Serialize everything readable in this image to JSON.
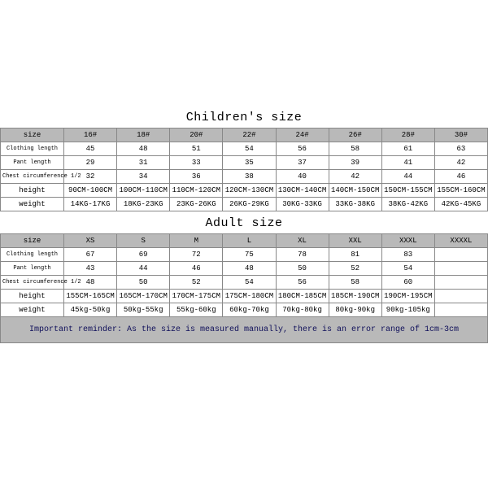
{
  "colors": {
    "header_bg": "#b9b9b9",
    "border": "#888888",
    "text": "#000000",
    "reminder_text": "#0f0f5a",
    "background": "#ffffff"
  },
  "children": {
    "title": "Children's size",
    "labels": {
      "size": "size",
      "clothing": "Clothing length",
      "pant": "Pant length",
      "chest": "Chest circumference 1/2",
      "height": "height",
      "weight": "weight"
    },
    "sizes": [
      "16#",
      "18#",
      "20#",
      "22#",
      "24#",
      "26#",
      "28#",
      "30#"
    ],
    "clothing_length": [
      "45",
      "48",
      "51",
      "54",
      "56",
      "58",
      "61",
      "63"
    ],
    "pant_length": [
      "29",
      "31",
      "33",
      "35",
      "37",
      "39",
      "41",
      "42"
    ],
    "chest": [
      "32",
      "34",
      "36",
      "38",
      "40",
      "42",
      "44",
      "46"
    ],
    "height": [
      "90CM-100CM",
      "100CM-110CM",
      "110CM-120CM",
      "120CM-130CM",
      "130CM-140CM",
      "140CM-150CM",
      "150CM-155CM",
      "155CM-160CM"
    ],
    "weight": [
      "14KG-17KG",
      "18KG-23KG",
      "23KG-26KG",
      "26KG-29KG",
      "30KG-33KG",
      "33KG-38KG",
      "38KG-42KG",
      "42KG-45KG"
    ]
  },
  "adult": {
    "title": "Adult size",
    "labels": {
      "size": "size",
      "clothing": "Clothing length",
      "pant": "Pant length",
      "chest": "Chest circumference 1/2",
      "height": "height",
      "weight": "weight"
    },
    "sizes": [
      "XS",
      "S",
      "M",
      "L",
      "XL",
      "XXL",
      "XXXL",
      "XXXXL"
    ],
    "clothing_length": [
      "67",
      "69",
      "72",
      "75",
      "78",
      "81",
      "83",
      ""
    ],
    "pant_length": [
      "43",
      "44",
      "46",
      "48",
      "50",
      "52",
      "54",
      ""
    ],
    "chest": [
      "48",
      "50",
      "52",
      "54",
      "56",
      "58",
      "60",
      ""
    ],
    "height": [
      "155CM-165CM",
      "165CM-170CM",
      "170CM-175CM",
      "175CM-180CM",
      "180CM-185CM",
      "185CM-190CM",
      "190CM-195CM",
      ""
    ],
    "weight": [
      "45kg-50kg",
      "50kg-55kg",
      "55kg-60kg",
      "60kg-70kg",
      "70kg-80kg",
      "80kg-90kg",
      "90kg-105kg",
      ""
    ]
  },
  "reminder": "Important reminder: As the size is measured manually, there is an error range of 1cm-3cm"
}
